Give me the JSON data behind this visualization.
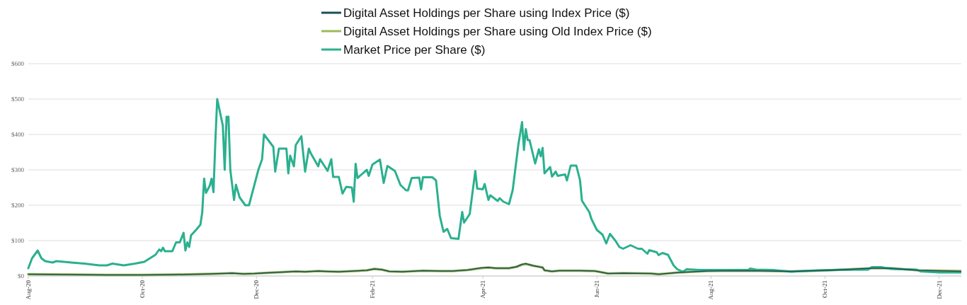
{
  "chart_data": {
    "type": "line",
    "legend": "top",
    "grid": "y",
    "line_style": "solid",
    "marker": "none",
    "xlim": [
      "2020-08-01",
      "2021-12-14"
    ],
    "xticks": [
      {
        "value": "2020-08-01",
        "label": "Aug-20"
      },
      {
        "value": "2020-10-01",
        "label": "Oct-20"
      },
      {
        "value": "2020-12-01",
        "label": "Dec-20"
      },
      {
        "value": "2021-02-01",
        "label": "Feb-21"
      },
      {
        "value": "2021-04-01",
        "label": "Apr-21"
      },
      {
        "value": "2021-06-01",
        "label": "Jun-21"
      },
      {
        "value": "2021-08-01",
        "label": "Aug-21"
      },
      {
        "value": "2021-10-01",
        "label": "Oct-21"
      },
      {
        "value": "2021-12-01",
        "label": "Dec-21"
      }
    ],
    "ylim": [
      0,
      600
    ],
    "yticks": [
      {
        "value": 0,
        "label": "$0"
      },
      {
        "value": 100,
        "label": "$100"
      },
      {
        "value": 200,
        "label": "$200"
      },
      {
        "value": 300,
        "label": "$300"
      },
      {
        "value": 400,
        "label": "$400"
      },
      {
        "value": 500,
        "label": "$500"
      },
      {
        "value": 600,
        "label": "$600"
      }
    ],
    "series": [
      {
        "name": "Digital Asset Holdings per Share using Index Price ($)",
        "color": "#1d4e5a",
        "x": [
          "2020-08-01",
          "2020-08-24",
          "2020-09-12",
          "2020-10-01",
          "2020-10-19",
          "2020-11-07",
          "2020-11-18",
          "2020-11-24",
          "2020-11-30",
          "2020-12-07",
          "2020-12-15",
          "2020-12-22",
          "2020-12-27",
          "2021-01-03",
          "2021-01-07",
          "2021-01-14",
          "2021-01-22",
          "2021-01-29",
          "2021-02-02",
          "2021-02-06",
          "2021-02-10",
          "2021-02-17",
          "2021-02-28",
          "2021-03-09",
          "2021-03-16",
          "2021-03-24",
          "2021-03-31",
          "2021-04-04",
          "2021-04-08",
          "2021-04-15",
          "2021-04-19",
          "2021-04-22",
          "2021-04-24",
          "2021-04-28",
          "2021-05-03",
          "2021-05-04",
          "2021-05-08",
          "2021-05-12",
          "2021-05-23",
          "2021-05-31",
          "2021-06-07",
          "2021-06-15",
          "2021-06-30",
          "2021-07-04",
          "2021-07-15",
          "2021-07-30",
          "2021-08-22",
          "2021-09-13",
          "2021-10-03",
          "2021-10-26",
          "2021-11-05",
          "2021-11-20",
          "2021-12-13"
        ],
        "values": [
          5,
          4,
          3,
          3,
          4,
          6,
          8,
          6,
          7,
          9,
          11,
          13,
          12,
          14,
          13,
          12,
          14,
          16,
          20,
          18,
          13,
          12,
          15,
          14,
          14,
          17,
          23,
          24,
          22,
          22,
          26,
          33,
          35,
          29,
          24,
          16,
          13,
          15,
          15,
          14,
          7,
          8,
          7,
          5,
          10,
          14,
          15,
          13,
          16,
          22,
          22,
          16,
          13
        ]
      },
      {
        "name": "Digital Asset Holdings per Share using Old Index Price ($)",
        "color": "#9bbb59",
        "x": [
          "2020-08-01",
          "2020-08-24",
          "2020-09-12",
          "2020-10-01",
          "2020-10-19",
          "2020-11-07",
          "2020-11-18",
          "2020-11-24",
          "2020-11-30",
          "2020-12-07",
          "2020-12-15",
          "2020-12-22",
          "2020-12-27",
          "2021-01-03",
          "2021-01-07",
          "2021-01-14",
          "2021-01-22",
          "2021-01-29",
          "2021-02-02",
          "2021-02-06",
          "2021-02-10",
          "2021-02-17",
          "2021-02-28",
          "2021-03-09",
          "2021-03-16",
          "2021-03-24",
          "2021-03-31",
          "2021-04-04",
          "2021-04-08",
          "2021-04-15",
          "2021-04-19",
          "2021-04-22",
          "2021-04-24",
          "2021-04-28",
          "2021-05-03",
          "2021-05-04",
          "2021-05-08",
          "2021-05-12",
          "2021-05-23",
          "2021-05-31",
          "2021-06-07",
          "2021-06-15",
          "2021-06-30",
          "2021-07-04",
          "2021-07-15",
          "2021-07-30",
          "2021-08-22",
          "2021-09-13",
          "2021-10-03",
          "2021-10-26",
          "2021-11-05",
          "2021-11-20",
          "2021-12-13"
        ],
        "values": [
          5,
          4,
          3,
          3,
          4,
          6,
          8,
          6,
          7,
          9,
          11,
          13,
          12,
          14,
          13,
          12,
          14,
          16,
          20,
          18,
          13,
          12,
          15,
          14,
          14,
          17,
          22,
          24,
          22,
          22,
          26,
          32,
          34,
          29,
          24,
          16,
          13,
          15,
          15,
          14,
          7,
          8,
          7,
          5,
          10,
          14,
          15,
          13,
          16,
          22,
          22,
          16,
          14
        ]
      },
      {
        "name": "Market Price per Share ($)",
        "color": "#2bb08f",
        "x": [
          "2020-08-01",
          "2020-08-03",
          "2020-08-06",
          "2020-08-08",
          "2020-08-10",
          "2020-08-14",
          "2020-08-16",
          "2020-08-24",
          "2020-08-31",
          "2020-09-08",
          "2020-09-12",
          "2020-09-15",
          "2020-09-21",
          "2020-09-27",
          "2020-10-02",
          "2020-10-08",
          "2020-10-10",
          "2020-10-11",
          "2020-10-12",
          "2020-10-13",
          "2020-10-17",
          "2020-10-19",
          "2020-10-21",
          "2020-10-23",
          "2020-10-24",
          "2020-10-25",
          "2020-10-26",
          "2020-10-27",
          "2020-10-30",
          "2020-11-01",
          "2020-11-02",
          "2020-11-03",
          "2020-11-04",
          "2020-11-06",
          "2020-11-07",
          "2020-11-08",
          "2020-11-09",
          "2020-11-10",
          "2020-11-13",
          "2020-11-14",
          "2020-11-15",
          "2020-11-16",
          "2020-11-17",
          "2020-11-19",
          "2020-11-20",
          "2020-11-22",
          "2020-11-25",
          "2020-11-27",
          "2020-12-02",
          "2020-12-04",
          "2020-12-05",
          "2020-12-10",
          "2020-12-11",
          "2020-12-13",
          "2020-12-17",
          "2020-12-18",
          "2020-12-19",
          "2020-12-21",
          "2020-12-22",
          "2020-12-25",
          "2020-12-27",
          "2020-12-29",
          "2020-12-30",
          "2021-01-03",
          "2021-01-04",
          "2021-01-08",
          "2021-01-10",
          "2021-01-11",
          "2021-01-14",
          "2021-01-16",
          "2021-01-18",
          "2021-01-21",
          "2021-01-22",
          "2021-01-23",
          "2021-01-24",
          "2021-01-29",
          "2021-01-30",
          "2021-02-01",
          "2021-02-05",
          "2021-02-07",
          "2021-02-09",
          "2021-02-13",
          "2021-02-16",
          "2021-02-19",
          "2021-02-20",
          "2021-02-22",
          "2021-02-26",
          "2021-02-27",
          "2021-02-28",
          "2021-03-05",
          "2021-03-07",
          "2021-03-09",
          "2021-03-11",
          "2021-03-13",
          "2021-03-15",
          "2021-03-19",
          "2021-03-21",
          "2021-03-22",
          "2021-03-25",
          "2021-03-28",
          "2021-03-29",
          "2021-04-01",
          "2021-04-02",
          "2021-04-04",
          "2021-04-05",
          "2021-04-09",
          "2021-04-10",
          "2021-04-12",
          "2021-04-15",
          "2021-04-17",
          "2021-04-20",
          "2021-04-22",
          "2021-04-23",
          "2021-04-24",
          "2021-04-25",
          "2021-04-26",
          "2021-04-29",
          "2021-05-01",
          "2021-05-02",
          "2021-05-03",
          "2021-05-04",
          "2021-05-07",
          "2021-05-08",
          "2021-05-10",
          "2021-05-11",
          "2021-05-15",
          "2021-05-16",
          "2021-05-18",
          "2021-05-21",
          "2021-05-23",
          "2021-05-24",
          "2021-05-28",
          "2021-05-29",
          "2021-06-01",
          "2021-06-04",
          "2021-06-06",
          "2021-06-08",
          "2021-06-11",
          "2021-06-13",
          "2021-06-15",
          "2021-06-19",
          "2021-06-23",
          "2021-06-25",
          "2021-06-28",
          "2021-06-29",
          "2021-07-03",
          "2021-07-04",
          "2021-07-06",
          "2021-07-09",
          "2021-07-12",
          "2021-07-14",
          "2021-07-17",
          "2021-07-19",
          "2021-07-26",
          "2021-08-08",
          "2021-08-21",
          "2021-08-22",
          "2021-08-25",
          "2021-09-03",
          "2021-09-13",
          "2021-09-23",
          "2021-10-04",
          "2021-10-24",
          "2021-10-26",
          "2021-10-31",
          "2021-11-05",
          "2021-11-19",
          "2021-11-21",
          "2021-12-01",
          "2021-12-13"
        ],
        "values": [
          22,
          50,
          72,
          50,
          42,
          38,
          42,
          38,
          35,
          30,
          30,
          35,
          30,
          35,
          40,
          60,
          75,
          70,
          80,
          70,
          70,
          95,
          95,
          122,
          72,
          95,
          82,
          115,
          132,
          145,
          180,
          275,
          235,
          255,
          275,
          237,
          380,
          500,
          425,
          300,
          450,
          450,
          300,
          215,
          258,
          222,
          200,
          200,
          300,
          330,
          400,
          365,
          295,
          360,
          360,
          290,
          340,
          310,
          370,
          395,
          295,
          360,
          347,
          310,
          330,
          297,
          330,
          280,
          280,
          233,
          252,
          250,
          210,
          317,
          277,
          300,
          283,
          315,
          329,
          263,
          311,
          297,
          257,
          242,
          242,
          277,
          278,
          245,
          279,
          279,
          270,
          170,
          125,
          133,
          107,
          105,
          181,
          151,
          175,
          297,
          247,
          245,
          260,
          215,
          228,
          212,
          220,
          210,
          203,
          243,
          371,
          435,
          356,
          415,
          384,
          384,
          318,
          358,
          338,
          362,
          290,
          308,
          281,
          295,
          283,
          287,
          270,
          312,
          312,
          270,
          213,
          180,
          162,
          130,
          117,
          92,
          119,
          99,
          82,
          77,
          87,
          77,
          77,
          63,
          73,
          67,
          59,
          65,
          60,
          30,
          19,
          12,
          19,
          17,
          17,
          17,
          21,
          18,
          17,
          12,
          15,
          17,
          18,
          25,
          25,
          20,
          18,
          13,
          10,
          10
        ]
      }
    ]
  }
}
